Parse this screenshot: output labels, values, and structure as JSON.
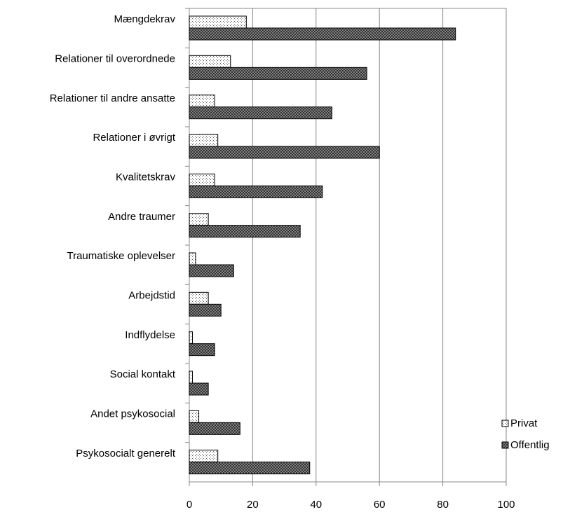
{
  "chart_data": {
    "type": "barh",
    "categories": [
      "Mængdekrav",
      "Relationer til overordnede",
      "Relationer til andre ansatte",
      "Relationer i øvrigt",
      "Kvalitetskrav",
      "Andre traumer",
      "Traumatiske oplevelser",
      "Arbejdstid",
      "Indflydelse",
      "Social kontakt",
      "Andet psykosocial",
      "Psykosocialt generelt"
    ],
    "series": [
      {
        "name": "Privat",
        "color": "#ffffff",
        "values": [
          18,
          13,
          8,
          9,
          8,
          6,
          2,
          6,
          1,
          1,
          3,
          9
        ]
      },
      {
        "name": "Offentlig",
        "color": "#808080",
        "values": [
          84,
          56,
          45,
          60,
          42,
          35,
          14,
          10,
          8,
          6,
          16,
          38
        ]
      }
    ],
    "xlim": [
      0,
      100
    ],
    "xticks": [
      0,
      20,
      40,
      60,
      80,
      100
    ],
    "grid": true,
    "legend": "right"
  }
}
